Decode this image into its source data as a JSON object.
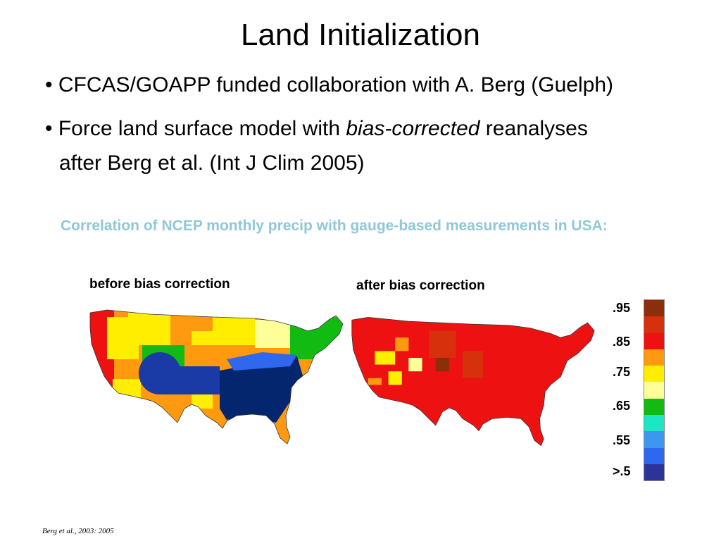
{
  "slide": {
    "title": "Land Initialization",
    "bullet1": "• CFCAS/GOAPP funded collaboration with A. Berg (Guelph)",
    "bullet2_prefix": "• Force land surface model with ",
    "bullet2_italic": "bias-corrected",
    "bullet2_suffix": " reanalyses",
    "bullet2_cont": "after Berg et al. (Int J Clim 2005)",
    "subtitle": "Correlation of NCEP monthly precip with gauge-based measurements in USA:",
    "source": "Berg et al., 2003: 2005"
  },
  "maps": {
    "before_caption": "before bias correction",
    "after_caption": "after bias correction"
  },
  "legend": {
    "labels": [
      ".95",
      ".85",
      ".75",
      ".65",
      ".55",
      ">.5"
    ],
    "colors": [
      "#8b2e0a",
      "#d6310c",
      "#ee1111",
      "#ff9a10",
      "#ffee00",
      "#ffff99",
      "#12bb12",
      "#1ce6c4",
      "#3f96ee",
      "#2f68ee",
      "#2e3399"
    ]
  }
}
